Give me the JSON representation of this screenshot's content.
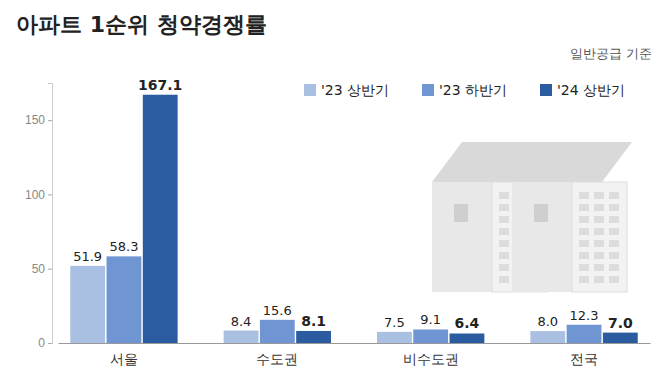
{
  "chart_data": {
    "type": "bar",
    "title": "아파트 1순위 청약경쟁률",
    "subtitle": "일반공급 기준",
    "categories": [
      "서울",
      "수도권",
      "비수도권",
      "전국"
    ],
    "series": [
      {
        "name": "'23 상반기",
        "color": "#a9c0e2",
        "values": [
          51.9,
          8.4,
          7.5,
          8.0
        ],
        "value_labels": [
          "51.9",
          "8.4",
          "7.5",
          "8.0"
        ]
      },
      {
        "name": "'23 하반기",
        "color": "#6f95d2",
        "values": [
          58.3,
          15.6,
          9.1,
          12.3
        ],
        "value_labels": [
          "58.3",
          "15.6",
          "9.1",
          "12.3"
        ]
      },
      {
        "name": "'24 상반기",
        "color": "#2b5ca0",
        "values": [
          167.1,
          8.1,
          6.4,
          7.0
        ],
        "value_labels": [
          "167.1",
          "8.1",
          "6.4",
          "7.0"
        ]
      }
    ],
    "ylim": [
      0,
      175
    ],
    "yticks": [
      0,
      50,
      100,
      150
    ],
    "grid": false,
    "legend": "top-right",
    "data_labels": true
  }
}
